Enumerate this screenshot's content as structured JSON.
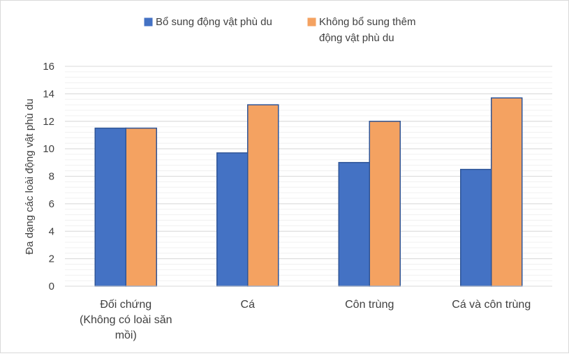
{
  "chart_data": {
    "type": "bar",
    "title": "",
    "xlabel": "",
    "ylabel": "Đa dạng các loài động vật phù du",
    "ylim": [
      0,
      16
    ],
    "yticks": [
      0,
      2,
      4,
      6,
      8,
      10,
      12,
      14,
      16
    ],
    "minor_gridlines": true,
    "legend_position": "top",
    "categories": [
      [
        "Đối chứng",
        "(Không có loài săn",
        "mồi)"
      ],
      [
        "Cá"
      ],
      [
        "Côn trùng"
      ],
      [
        "Cá và côn trùng"
      ]
    ],
    "series": [
      {
        "name": [
          "Bổ sung động vật phù du"
        ],
        "color": "#4472c4",
        "values": [
          11.5,
          9.7,
          9.0,
          8.5
        ]
      },
      {
        "name": [
          "Không bổ sung thêm",
          "động vật phù du"
        ],
        "color": "#f4a261",
        "values": [
          11.5,
          13.2,
          12.0,
          13.7
        ]
      }
    ]
  }
}
